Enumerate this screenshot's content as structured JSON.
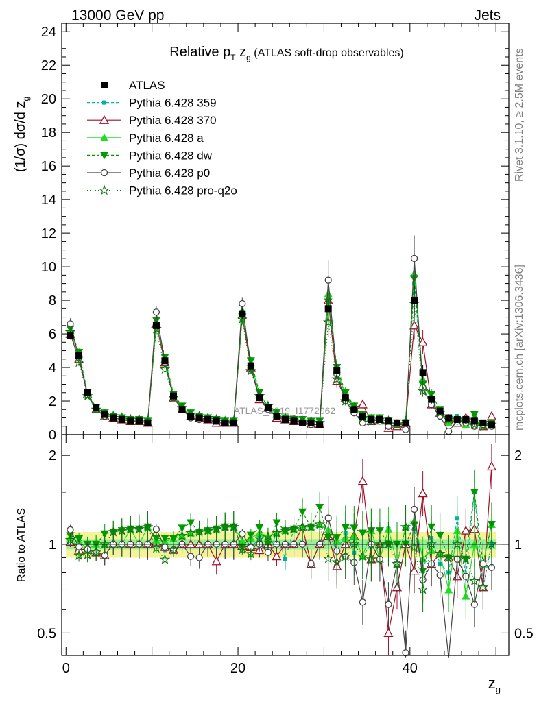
{
  "header": {
    "left": "13000 GeV pp",
    "right": "Jets",
    "side_top": "Rivet 3.1.10, ≥ 2.5M events",
    "side_bottom": "mcplots.cern.ch [arXiv:1306.3436]",
    "watermark": "ATLAS_2019_I1772062"
  },
  "chart_data": [
    {
      "type": "scatter",
      "title_main": "Relative p",
      "title_sub1": "T",
      "title_mid": " z",
      "title_sub2": "g",
      "title_tail": " (ATLAS soft-drop observables)",
      "ylabel": "(1/σ) dσ/d z",
      "ylabel_sub": "g",
      "xlabel": "z",
      "xlabel_sub": "g",
      "xlim": [
        -0.5,
        51.5
      ],
      "ylim": [
        0,
        24.5
      ],
      "x_ticks": [
        0,
        20,
        40
      ],
      "y_ticks": [
        0,
        2,
        4,
        6,
        8,
        10,
        12,
        14,
        16,
        18,
        20,
        22,
        24
      ],
      "x": [
        0.5,
        1.5,
        2.5,
        3.5,
        4.5,
        5.5,
        6.5,
        7.5,
        8.5,
        9.5,
        10.5,
        11.5,
        12.5,
        13.5,
        14.5,
        15.5,
        16.5,
        17.5,
        18.5,
        19.5,
        20.5,
        21.5,
        22.5,
        23.5,
        24.5,
        25.5,
        26.5,
        27.5,
        28.5,
        29.5,
        30.5,
        31.5,
        32.5,
        33.5,
        34.5,
        35.5,
        36.5,
        37.5,
        38.5,
        39.5,
        40.5,
        41.5,
        42.5,
        43.5,
        44.5,
        45.5,
        46.5,
        47.5,
        48.5,
        49.5
      ],
      "series": [
        {
          "name": "ATLAS",
          "color": "#000000",
          "marker": "square",
          "dash": "",
          "values": [
            5.9,
            4.7,
            2.5,
            1.6,
            1.2,
            1.0,
            0.9,
            0.8,
            0.8,
            0.7,
            6.5,
            4.4,
            2.3,
            1.5,
            1.1,
            1.0,
            0.9,
            0.8,
            0.7,
            0.7,
            7.2,
            4.1,
            2.2,
            1.6,
            1.1,
            0.9,
            0.8,
            0.7,
            0.7,
            0.6,
            7.5,
            3.8,
            2.2,
            1.5,
            1.1,
            0.9,
            0.9,
            0.8,
            0.7,
            0.7,
            8.0,
            3.7,
            2.1,
            1.4,
            1.0,
            0.9,
            0.9,
            0.8,
            0.7,
            0.6
          ]
        },
        {
          "name": "Pythia 6.428 359",
          "color": "#00b3a1",
          "marker": "smallsquare",
          "dash": "4,3",
          "values": [
            6.1,
            4.6,
            2.4,
            1.5,
            1.1,
            1.0,
            0.9,
            0.8,
            0.8,
            0.7,
            6.6,
            4.2,
            2.2,
            1.5,
            1.1,
            1.0,
            0.9,
            0.8,
            0.7,
            0.7,
            7.3,
            4.0,
            2.3,
            1.5,
            1.2,
            0.8,
            0.9,
            0.7,
            0.6,
            0.6,
            8.2,
            3.6,
            2.4,
            1.4,
            1.0,
            0.9,
            0.8,
            0.9,
            0.6,
            0.8,
            9.0,
            3.0,
            2.2,
            1.2,
            0.8,
            1.1,
            0.7,
            1.2,
            0.5,
            0.6
          ]
        },
        {
          "name": "Pythia 6.428 370",
          "color": "#a0102a",
          "marker": "triangle-open",
          "dash": "",
          "values": [
            6.0,
            4.5,
            2.4,
            1.5,
            1.1,
            1.0,
            0.9,
            0.8,
            0.8,
            0.7,
            6.6,
            4.3,
            2.2,
            1.5,
            1.1,
            1.0,
            0.9,
            0.7,
            0.7,
            0.7,
            7.1,
            4.0,
            2.1,
            1.6,
            1.0,
            0.9,
            0.8,
            0.8,
            0.6,
            0.6,
            8.0,
            3.2,
            2.2,
            1.6,
            1.8,
            0.8,
            0.9,
            0.4,
            0.5,
            0.7,
            6.5,
            5.5,
            1.8,
            1.3,
            0.9,
            0.7,
            1.0,
            0.9,
            0.5,
            1.1
          ]
        },
        {
          "name": "Pythia 6.428 a",
          "color": "#22dd22",
          "marker": "triangle-filled",
          "dash": "",
          "values": [
            6.2,
            4.8,
            2.4,
            1.6,
            1.2,
            1.0,
            0.9,
            0.9,
            0.8,
            0.8,
            6.7,
            4.5,
            2.4,
            1.6,
            1.2,
            1.1,
            1.0,
            0.9,
            0.8,
            0.8,
            7.4,
            4.3,
            2.4,
            1.7,
            1.2,
            1.0,
            0.9,
            0.8,
            0.8,
            0.7,
            8.4,
            3.9,
            2.3,
            1.6,
            1.0,
            1.0,
            0.8,
            0.9,
            0.6,
            0.8,
            9.6,
            3.3,
            2.0,
            1.3,
            0.7,
            1.0,
            0.6,
            0.8,
            0.6,
            0.7
          ]
        },
        {
          "name": "Pythia 6.428 dw",
          "color": "#009900",
          "marker": "triangle-down",
          "dash": "4,3",
          "values": [
            6.3,
            4.9,
            2.5,
            1.6,
            1.3,
            1.1,
            1.0,
            0.9,
            0.9,
            0.8,
            6.8,
            4.6,
            2.4,
            1.7,
            1.3,
            1.1,
            1.0,
            0.9,
            0.8,
            0.8,
            7.0,
            4.4,
            2.5,
            1.6,
            1.3,
            1.0,
            0.9,
            0.9,
            0.8,
            0.8,
            7.9,
            4.0,
            2.5,
            1.7,
            1.2,
            1.0,
            1.0,
            0.8,
            0.7,
            0.7,
            9.3,
            3.0,
            2.4,
            1.5,
            0.9,
            0.8,
            0.8,
            1.2,
            0.6,
            0.7
          ]
        },
        {
          "name": "Pythia 6.428 p0",
          "color": "#444444",
          "marker": "circle-open",
          "dash": "",
          "values": [
            6.6,
            4.6,
            2.4,
            1.5,
            1.1,
            1.0,
            0.9,
            0.8,
            0.8,
            0.7,
            7.3,
            4.3,
            2.2,
            1.5,
            1.0,
            0.9,
            0.9,
            0.8,
            0.7,
            0.7,
            7.8,
            4.0,
            2.2,
            1.5,
            1.1,
            0.9,
            0.8,
            0.7,
            0.6,
            0.6,
            9.2,
            3.6,
            2.0,
            1.3,
            0.7,
            0.9,
            0.8,
            0.5,
            0.6,
            0.3,
            10.5,
            2.8,
            1.8,
            1.1,
            0.2,
            0.8,
            0.7,
            0.5,
            0.6,
            0.5
          ]
        },
        {
          "name": "Pythia 6.428 pro-q2o",
          "color": "#117711",
          "marker": "star",
          "dash": "1,3",
          "values": [
            6.1,
            4.3,
            2.3,
            1.5,
            1.2,
            1.1,
            1.0,
            0.9,
            0.9,
            0.8,
            6.3,
            3.9,
            2.2,
            1.6,
            1.2,
            1.1,
            1.0,
            0.9,
            0.8,
            0.8,
            6.9,
            3.8,
            2.3,
            1.7,
            1.2,
            1.0,
            0.9,
            0.8,
            0.8,
            0.7,
            6.7,
            3.3,
            2.0,
            1.5,
            1.0,
            0.8,
            0.9,
            0.8,
            0.6,
            0.8,
            7.8,
            2.6,
            2.1,
            1.3,
            0.9,
            0.9,
            0.8,
            0.6,
            0.5,
            0.6
          ]
        }
      ],
      "legend_placement": "top-left",
      "grid": false
    },
    {
      "type": "line",
      "ylabel": "Ratio to ATLAS",
      "ylim": [
        0.42,
        2.35
      ],
      "log_y": true,
      "y_ticks": [
        0.5,
        1,
        2
      ],
      "reference": 1,
      "band_inner_fraction": 0.04,
      "band_outer_fraction": 0.1,
      "series_note": "ratios computed as series / ATLAS"
    }
  ]
}
